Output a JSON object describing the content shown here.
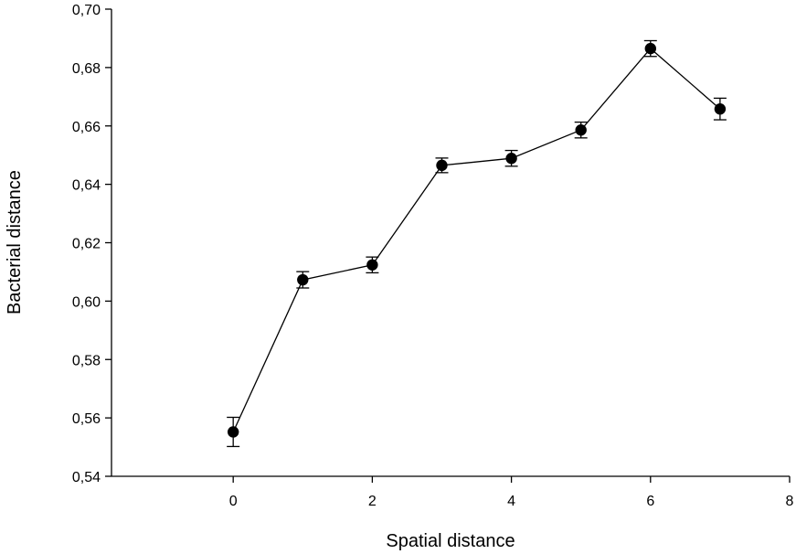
{
  "chart_data": {
    "type": "line",
    "title": "",
    "xlabel": "Spatial distance",
    "ylabel": "Bacterial distance",
    "xlim": [
      -1.75,
      8
    ],
    "ylim": [
      0.54,
      0.7
    ],
    "x_ticks": [
      0,
      2,
      4,
      6,
      8
    ],
    "x_tick_labels": [
      "0",
      "2",
      "4",
      "6",
      "8"
    ],
    "y_ticks": [
      0.54,
      0.56,
      0.58,
      0.6,
      0.62,
      0.64,
      0.66,
      0.68,
      0.7
    ],
    "y_tick_labels": [
      "0,54",
      "0,56",
      "0,58",
      "0,60",
      "0,62",
      "0,64",
      "0,66",
      "0,68",
      "0,70"
    ],
    "grid": false,
    "legend": "none",
    "series": [
      {
        "x": [
          0,
          1,
          2,
          3,
          4,
          5,
          6,
          7
        ],
        "values": [
          0.5552,
          0.6073,
          0.6124,
          0.6465,
          0.6489,
          0.6586,
          0.6865,
          0.6658
        ],
        "error": [
          0.005,
          0.0028,
          0.0027,
          0.0025,
          0.0027,
          0.0027,
          0.0027,
          0.0037
        ]
      }
    ],
    "colors": {
      "line": "#000000",
      "marker": "#000000"
    }
  }
}
